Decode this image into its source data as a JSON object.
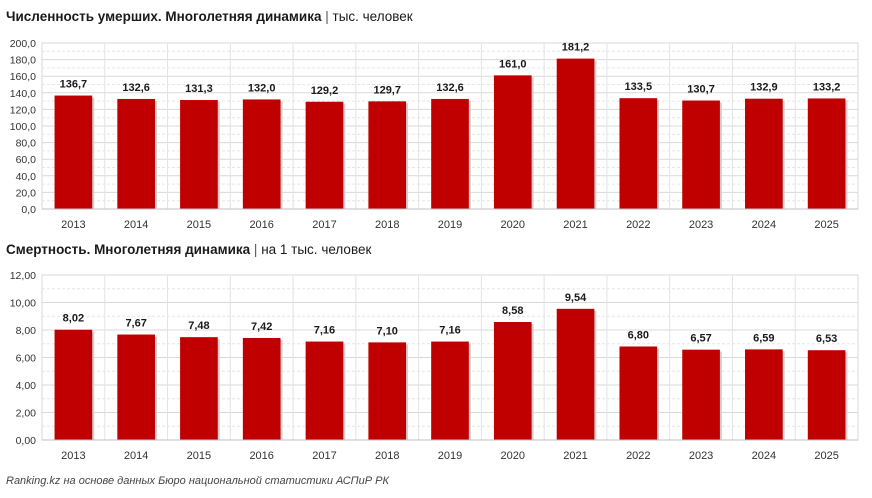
{
  "charts": [
    {
      "title_bold": "Численность умерших. Многолетняя динамика",
      "title_sep": "|",
      "title_unit": "тыс. человек"
    },
    {
      "title_bold": "Смертность. Многолетняя динамика",
      "title_sep": "|",
      "title_unit": "на 1 тыс. человек"
    }
  ],
  "chart_data": [
    {
      "type": "bar",
      "title": "Численность умерших. Многолетняя динамика | тыс. человек",
      "categories": [
        "2013",
        "2014",
        "2015",
        "2016",
        "2017",
        "2018",
        "2019",
        "2020",
        "2021",
        "2022",
        "2023",
        "2024",
        "2025"
      ],
      "values": [
        136.7,
        132.6,
        131.3,
        132.0,
        129.2,
        129.7,
        132.6,
        161.0,
        181.2,
        133.5,
        130.7,
        132.9,
        133.2
      ],
      "labels": [
        "136,7",
        "132,6",
        "131,3",
        "132,0",
        "129,2",
        "129,7",
        "132,6",
        "161,0",
        "181,2",
        "133,5",
        "130,7",
        "132,9",
        "133,2"
      ],
      "ylim": [
        0,
        200
      ],
      "yticks": [
        "0,0",
        "20,0",
        "40,0",
        "60,0",
        "80,0",
        "100,0",
        "120,0",
        "140,0",
        "160,0",
        "180,0",
        "200,0"
      ],
      "color": "#c00000",
      "grid": true
    },
    {
      "type": "bar",
      "title": "Смертность. Многолетняя динамика | на 1 тыс. человек",
      "categories": [
        "2013",
        "2014",
        "2015",
        "2016",
        "2017",
        "2018",
        "2019",
        "2020",
        "2021",
        "2022",
        "2023",
        "2024",
        "2025"
      ],
      "values": [
        8.02,
        7.67,
        7.48,
        7.42,
        7.16,
        7.1,
        7.16,
        8.58,
        9.54,
        6.8,
        6.57,
        6.59,
        6.53
      ],
      "labels": [
        "8,02",
        "7,67",
        "7,48",
        "7,42",
        "7,16",
        "7,10",
        "7,16",
        "8,58",
        "9,54",
        "6,80",
        "6,57",
        "6,59",
        "6,53"
      ],
      "ylim": [
        0,
        12
      ],
      "yticks": [
        "0,00",
        "2,00",
        "4,00",
        "6,00",
        "8,00",
        "10,00",
        "12,00"
      ],
      "color": "#c00000",
      "grid": true
    }
  ],
  "source": "Ranking.kz на основе данных Бюро национальной статистики АСПиР РК"
}
